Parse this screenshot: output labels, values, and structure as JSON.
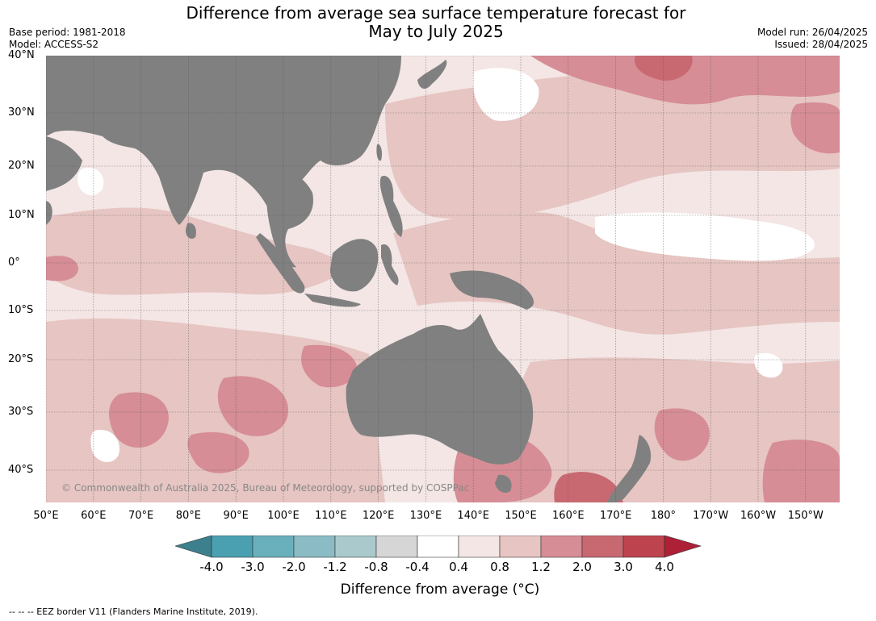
{
  "header": {
    "title_line1": "Difference from average sea surface temperature forecast for",
    "title_line2": "May to July 2025",
    "base_period": "Base period: 1981-2018",
    "model": "Model: ACCESS-S2",
    "model_run": "Model run: 26/04/2025",
    "issued": "Issued: 28/04/2025"
  },
  "map": {
    "lat_labels": [
      "40°N",
      "30°N",
      "20°N",
      "10°N",
      "0°",
      "10°S",
      "20°S",
      "30°S",
      "40°S"
    ],
    "lon_labels": [
      "50°E",
      "60°E",
      "70°E",
      "80°E",
      "90°E",
      "100°E",
      "110°E",
      "120°E",
      "130°E",
      "140°E",
      "150°E",
      "160°E",
      "170°E",
      "180°",
      "170°W",
      "160°W",
      "150°W"
    ],
    "copyright": "© Commonwealth of Australia 2025, Bureau of Meteorology, supported by COSPPac",
    "colors": {
      "land": "#808080",
      "ocean_base": "#f3e6e5"
    }
  },
  "legend": {
    "ticks": [
      "-4.0",
      "-3.0",
      "-2.0",
      "-1.2",
      "-0.8",
      "-0.4",
      "0.4",
      "0.8",
      "1.2",
      "2.0",
      "3.0",
      "4.0"
    ],
    "colors": [
      "#4aa0b1",
      "#6aafbc",
      "#8bbbc4",
      "#a9c9cc",
      "#d6d6d6",
      "#ffffff",
      "#f3e6e5",
      "#e6c5c2",
      "#d68d95",
      "#c86871",
      "#bd434f"
    ],
    "under_color": "#3d808d",
    "over_color": "#ae2036",
    "label": "Difference from average (°C)"
  },
  "footnote": "--  --  -- EEZ border V11 (Flanders Marine Institute, 2019)."
}
